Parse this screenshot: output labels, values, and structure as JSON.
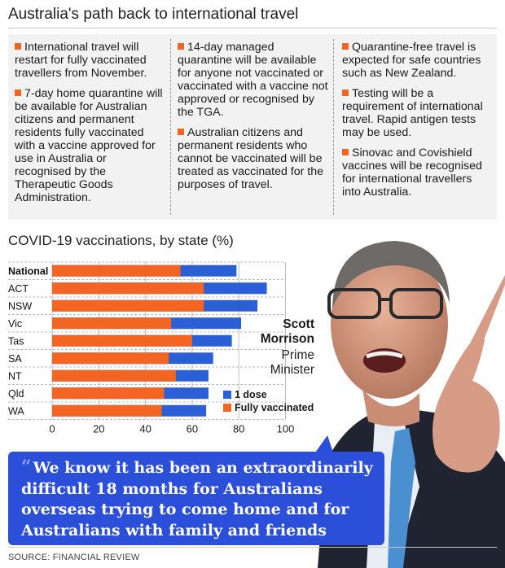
{
  "header": {
    "title": "Australia's path back to international travel"
  },
  "bullets": {
    "col1": [
      "International travel will restart for fully vaccinated travellers from November.",
      "7-day home quarantine will be available for Australian citizens and permanent residents fully vaccinated with a vaccine approved for use in Australia or recognised by the Therapeutic Goods Administration."
    ],
    "col2": [
      "14-day managed quarantine will be available for anyone not vaccinated or vaccinated with a vaccine not approved or recognised by the TGA.",
      "Australian citizens and permanent residents who cannot be vaccinated will be treated as vaccinated for the purposes of travel."
    ],
    "col3": [
      "Quarantine-free travel is expected for safe countries such as New Zealand.",
      "Testing will be a requirement of international travel. Rapid antigen tests may be used.",
      "Sinovac and Covishield vaccines will be recognised for international travellers into Australia."
    ]
  },
  "chart_data": {
    "type": "bar",
    "orientation": "horizontal",
    "stacked": false,
    "title": "COVID-19 vaccinations, by state (%)",
    "categories": [
      "National",
      "ACT",
      "NSW",
      "Vic",
      "Tas",
      "SA",
      "NT",
      "Qld",
      "WA"
    ],
    "series": [
      {
        "name": "1 dose",
        "color": "#2b5fd6",
        "values": [
          79,
          92,
          88,
          81,
          77,
          69,
          67,
          67,
          66
        ]
      },
      {
        "name": "Fully vaccinated",
        "color": "#f26522",
        "values": [
          55,
          65,
          65,
          51,
          60,
          50,
          53,
          48,
          47
        ]
      }
    ],
    "xlim": [
      0,
      100
    ],
    "xticks": [
      "0",
      "20",
      "40",
      "60",
      "80",
      "100"
    ],
    "grid": true,
    "legend": "bottom-right"
  },
  "speaker": {
    "name": "Scott Morrison",
    "role": "Prime Minister"
  },
  "quote": {
    "mark": "“",
    "text": "We know it has been an extraordinarily difficult 18 months for Australians overseas trying to come home and for Australians with family and friends overseas."
  },
  "source": "SOURCE: FINANCIAL REVIEW"
}
